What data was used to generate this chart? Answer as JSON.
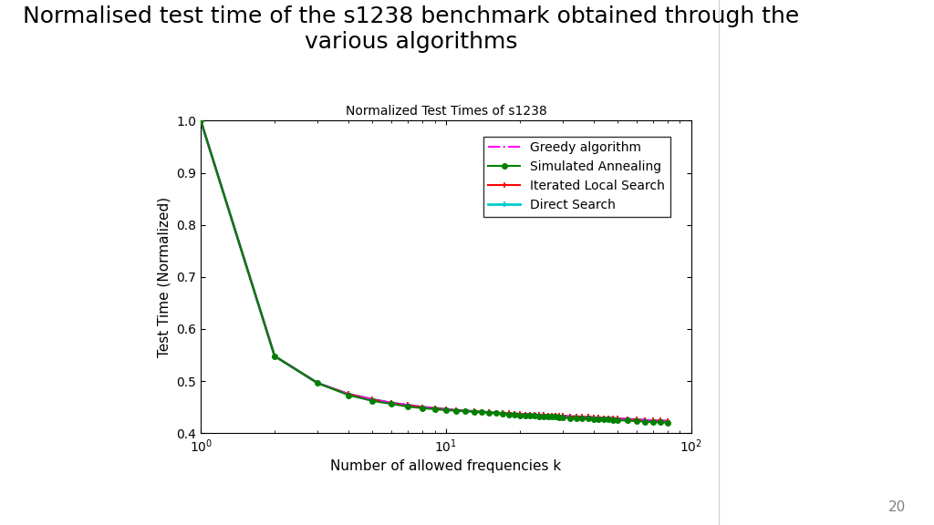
{
  "title_main": "Normalised test time of the s1238 benchmark obtained through the\nvarious algorithms",
  "title_inner": "Normalized Test Times of s1238",
  "xlabel": "Number of allowed frequencies k",
  "ylabel": "Test Time (Normalized)",
  "xlim_log": [
    1,
    100
  ],
  "ylim": [
    0.4,
    1.0
  ],
  "yticks": [
    0.4,
    0.5,
    0.6,
    0.7,
    0.8,
    0.9,
    1.0
  ],
  "background_color": "#ffffff",
  "page_number": "20",
  "series": {
    "greedy": {
      "label": "Greedy algorithm",
      "color": "#ff00ff",
      "linestyle": "-.",
      "linewidth": 1.5,
      "zorder": 3
    },
    "sa": {
      "label": "Simulated Annealing",
      "color": "#008000",
      "linestyle": "-",
      "marker": "o",
      "markersize": 4,
      "linewidth": 1.5,
      "zorder": 4
    },
    "ils": {
      "label": "Iterated Local Search",
      "color": "#ff0000",
      "linestyle": "-",
      "marker": "+",
      "markersize": 5,
      "linewidth": 1.5,
      "zorder": 3
    },
    "ds": {
      "label": "Direct Search",
      "color": "#00cccc",
      "linestyle": "-",
      "marker": "+",
      "markersize": 5,
      "linewidth": 2.0,
      "zorder": 2
    }
  },
  "k_values": [
    1,
    2,
    3,
    4,
    5,
    6,
    7,
    8,
    9,
    10,
    11,
    12,
    13,
    14,
    15,
    16,
    17,
    18,
    19,
    20,
    21,
    22,
    23,
    24,
    25,
    26,
    27,
    28,
    29,
    30,
    32,
    34,
    36,
    38,
    40,
    42,
    44,
    46,
    48,
    50,
    55,
    60,
    65,
    70,
    75,
    80
  ],
  "y_base": [
    1.0,
    0.548,
    0.496,
    0.475,
    0.465,
    0.458,
    0.454,
    0.45,
    0.448,
    0.446,
    0.444,
    0.443,
    0.442,
    0.441,
    0.44,
    0.439,
    0.438,
    0.438,
    0.437,
    0.437,
    0.436,
    0.436,
    0.435,
    0.435,
    0.435,
    0.434,
    0.434,
    0.434,
    0.433,
    0.433,
    0.432,
    0.432,
    0.431,
    0.431,
    0.43,
    0.43,
    0.429,
    0.429,
    0.429,
    0.428,
    0.427,
    0.426,
    0.425,
    0.424,
    0.424,
    0.423
  ],
  "y_sa": [
    1.0,
    0.548,
    0.496,
    0.473,
    0.462,
    0.456,
    0.451,
    0.448,
    0.446,
    0.444,
    0.443,
    0.442,
    0.441,
    0.44,
    0.439,
    0.438,
    0.437,
    0.436,
    0.435,
    0.434,
    0.434,
    0.433,
    0.433,
    0.432,
    0.432,
    0.431,
    0.431,
    0.431,
    0.43,
    0.43,
    0.429,
    0.429,
    0.428,
    0.428,
    0.427,
    0.427,
    0.426,
    0.426,
    0.425,
    0.425,
    0.424,
    0.423,
    0.422,
    0.421,
    0.421,
    0.42
  ]
}
